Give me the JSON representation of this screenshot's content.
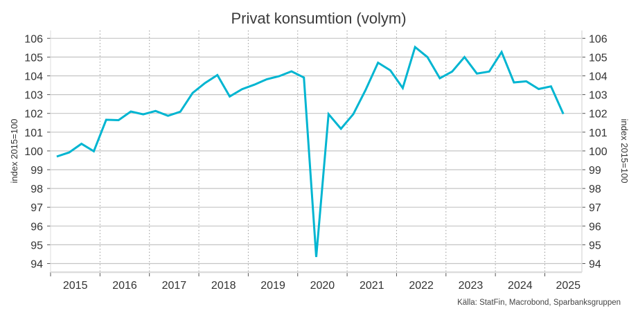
{
  "chart_data": {
    "type": "line",
    "title": "Privat konsumtion (volym)",
    "ylabel": "index 2015=100",
    "ylabel_right": "index 2015=100",
    "xlabel": "",
    "source": "Källa: StatFin, Macrobond, Sparbanksgruppen",
    "ylim": [
      94,
      106
    ],
    "yticks": [
      94,
      95,
      96,
      97,
      98,
      99,
      100,
      101,
      102,
      103,
      104,
      105,
      106
    ],
    "x_tick_labels": [
      "2015",
      "2016",
      "2017",
      "2018",
      "2019",
      "2020",
      "2021",
      "2022",
      "2023",
      "2024",
      "2025"
    ],
    "x_frequency": "quarterly",
    "x_start": "2015Q1",
    "grid": {
      "horizontal": true,
      "vertical_dotted_year_separators": true
    },
    "line_color": "#00b5d1",
    "series": [
      {
        "values": [
          99.7,
          99.92,
          100.38,
          99.98,
          101.66,
          101.64,
          102.1,
          101.95,
          102.13,
          101.87,
          102.09,
          103.09,
          103.62,
          104.04,
          102.9,
          103.29,
          103.53,
          103.82,
          103.98,
          104.24,
          103.91,
          94.35,
          101.96,
          101.18,
          101.96,
          103.25,
          104.7,
          104.29,
          103.35,
          105.53,
          105.0,
          103.87,
          104.23,
          105.0,
          104.12,
          104.23,
          105.27,
          103.65,
          103.71,
          103.3,
          103.44,
          101.97
        ]
      }
    ]
  }
}
